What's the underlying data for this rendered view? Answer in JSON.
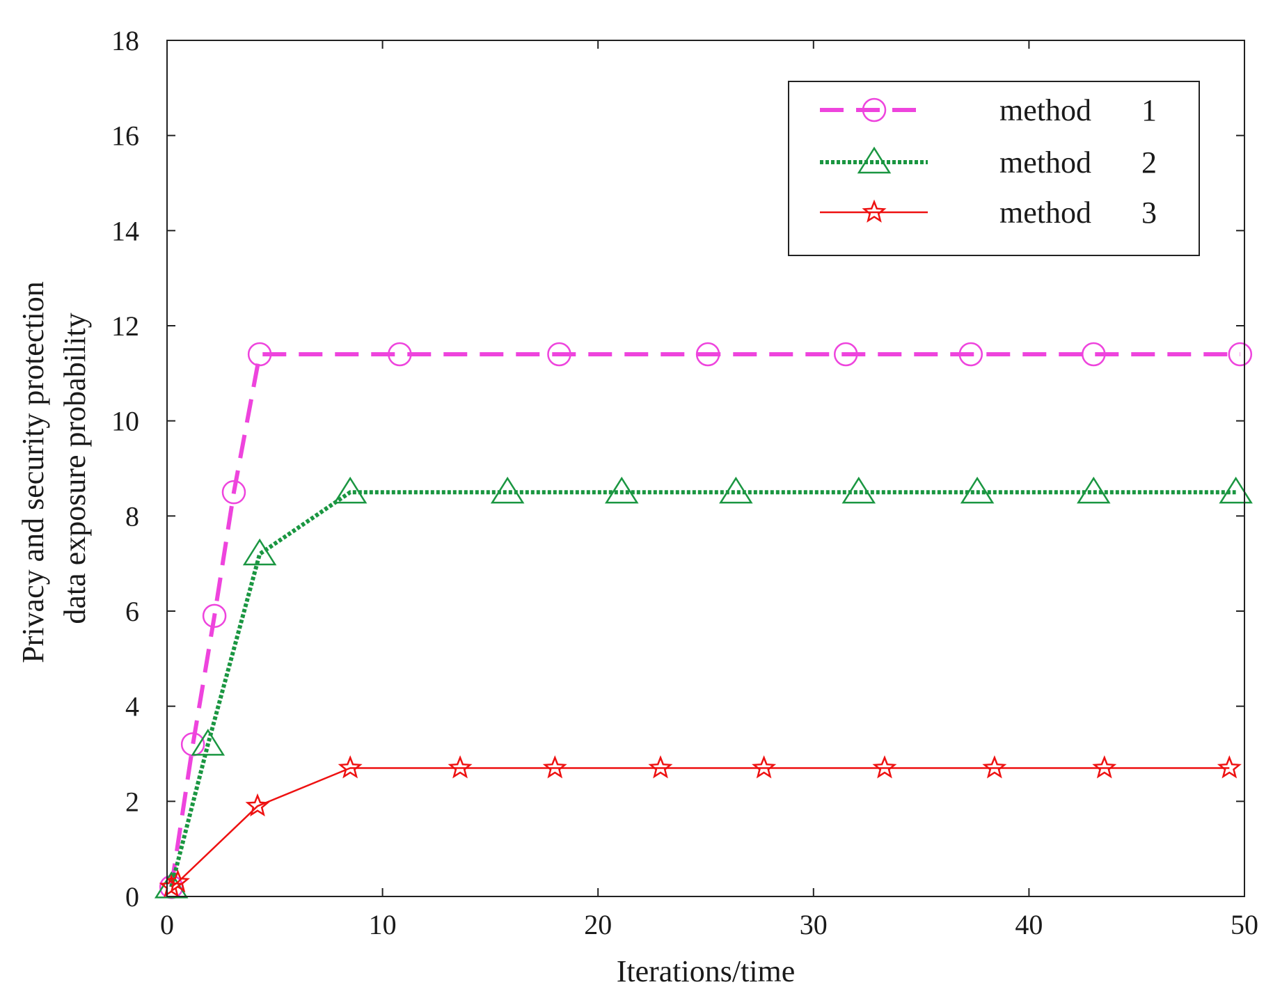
{
  "chart_data": {
    "type": "line",
    "title": "",
    "xlabel": "Iterations/time",
    "ylabel": [
      "Privacy and security protection",
      "data exposure probability"
    ],
    "xlim": [
      0,
      50
    ],
    "ylim": [
      0,
      18
    ],
    "xticks": [
      0,
      10,
      20,
      30,
      40,
      50
    ],
    "yticks": [
      0,
      2,
      4,
      6,
      8,
      10,
      12,
      14,
      16,
      18
    ],
    "grid": false,
    "legend_position": "top-right",
    "series": [
      {
        "name": "method",
        "legend_num": "1",
        "color": "#ee44dd",
        "line_style": "dashed",
        "marker": "circle",
        "x": [
          0.2,
          1.2,
          2.2,
          3.1,
          4.3,
          10.8,
          18.2,
          25.1,
          31.5,
          37.3,
          43.0,
          49.8
        ],
        "y": [
          0.2,
          3.2,
          5.9,
          8.5,
          11.4,
          11.4,
          11.4,
          11.4,
          11.4,
          11.4,
          11.4,
          11.4
        ]
      },
      {
        "name": "method",
        "legend_num": "2",
        "color": "#1a9641",
        "line_style": "dotted",
        "marker": "triangle",
        "x": [
          0.2,
          1.9,
          4.3,
          8.5,
          15.8,
          21.1,
          26.4,
          32.1,
          37.6,
          43.0,
          49.6
        ],
        "y": [
          0.2,
          3.2,
          7.2,
          8.5,
          8.5,
          8.5,
          8.5,
          8.5,
          8.5,
          8.5,
          8.5
        ]
      },
      {
        "name": "method",
        "legend_num": "3",
        "color": "#ee1111",
        "line_style": "solid",
        "marker": "star",
        "x": [
          0.2,
          0.5,
          4.2,
          8.5,
          13.6,
          18.0,
          22.9,
          27.7,
          33.3,
          38.4,
          43.5,
          49.3
        ],
        "y": [
          0.2,
          0.3,
          1.9,
          2.7,
          2.7,
          2.7,
          2.7,
          2.7,
          2.7,
          2.7,
          2.7,
          2.7
        ]
      }
    ]
  }
}
